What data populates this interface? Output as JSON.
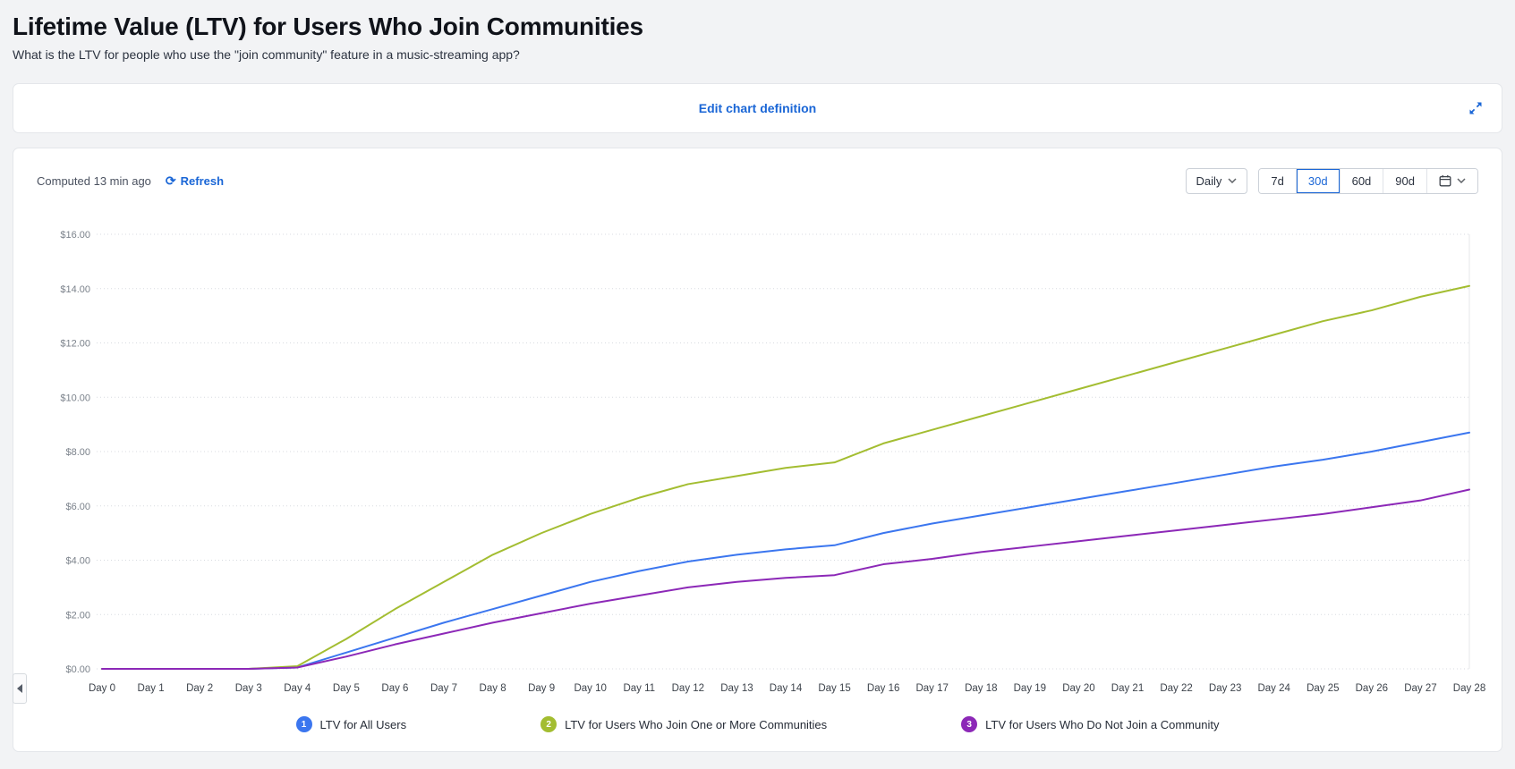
{
  "page": {
    "title": "Lifetime Value (LTV) for Users Who Join Communities",
    "subtitle": "What is the LTV for people who use the \"join community\" feature in a music-streaming app?"
  },
  "definition_bar": {
    "edit_link": "Edit chart definition"
  },
  "toolbar": {
    "computed_text": "Computed 13 min ago",
    "refresh_label": "Refresh",
    "granularity_selected": "Daily",
    "ranges": [
      "7d",
      "30d",
      "60d",
      "90d"
    ],
    "selected_range": "30d"
  },
  "chart_data": {
    "type": "line",
    "title": "",
    "xlabel": "",
    "ylabel": "",
    "x": [
      "Day 0",
      "Day 1",
      "Day 2",
      "Day 3",
      "Day 4",
      "Day 5",
      "Day 6",
      "Day 7",
      "Day 8",
      "Day 9",
      "Day 10",
      "Day 11",
      "Day 12",
      "Day 13",
      "Day 14",
      "Day 15",
      "Day 16",
      "Day 17",
      "Day 18",
      "Day 19",
      "Day 20",
      "Day 21",
      "Day 22",
      "Day 23",
      "Day 24",
      "Day 25",
      "Day 26",
      "Day 27",
      "Day 28"
    ],
    "ylim": [
      0,
      16
    ],
    "ytick_step": 2,
    "ytick_prefix": "$",
    "grid": "horizontal-dotted",
    "legend_position": "bottom",
    "colors": {
      "grid": "#d8dbe0",
      "ytick": "#7b828b",
      "xtick": "#3d434b",
      "plot_right_border": "#e4e7ea"
    },
    "series": [
      {
        "name": "LTV for All Users",
        "color": "#3b76ef",
        "values": [
          0,
          0,
          0,
          0,
          0.05,
          0.6,
          1.15,
          1.7,
          2.2,
          2.7,
          3.2,
          3.6,
          3.95,
          4.2,
          4.4,
          4.55,
          5.0,
          5.35,
          5.65,
          5.95,
          6.25,
          6.55,
          6.85,
          7.15,
          7.45,
          7.7,
          8.0,
          8.35,
          8.7
        ]
      },
      {
        "name": "LTV for Users Who Join One or More Communities",
        "color": "#a3bd31",
        "values": [
          0,
          0,
          0,
          0,
          0.1,
          1.1,
          2.2,
          3.2,
          4.2,
          5.0,
          5.7,
          6.3,
          6.8,
          7.1,
          7.4,
          7.6,
          8.3,
          8.8,
          9.3,
          9.8,
          10.3,
          10.8,
          11.3,
          11.8,
          12.3,
          12.8,
          13.2,
          13.7,
          14.1
        ]
      },
      {
        "name": "LTV for Users Who Do Not Join a Community",
        "color": "#8c28b7",
        "values": [
          0,
          0,
          0,
          0,
          0.05,
          0.45,
          0.9,
          1.3,
          1.7,
          2.05,
          2.4,
          2.7,
          3.0,
          3.2,
          3.35,
          3.45,
          3.85,
          4.05,
          4.3,
          4.5,
          4.7,
          4.9,
          5.1,
          5.3,
          5.5,
          5.7,
          5.95,
          6.2,
          6.6
        ]
      }
    ]
  },
  "legend": {
    "items": [
      {
        "index": "1",
        "label": "LTV for All Users",
        "color": "#3b76ef"
      },
      {
        "index": "2",
        "label": "LTV for Users Who Join One or More Communities",
        "color": "#a3bd31"
      },
      {
        "index": "3",
        "label": "LTV for Users Who Do Not Join a Community",
        "color": "#8c28b7"
      }
    ]
  }
}
